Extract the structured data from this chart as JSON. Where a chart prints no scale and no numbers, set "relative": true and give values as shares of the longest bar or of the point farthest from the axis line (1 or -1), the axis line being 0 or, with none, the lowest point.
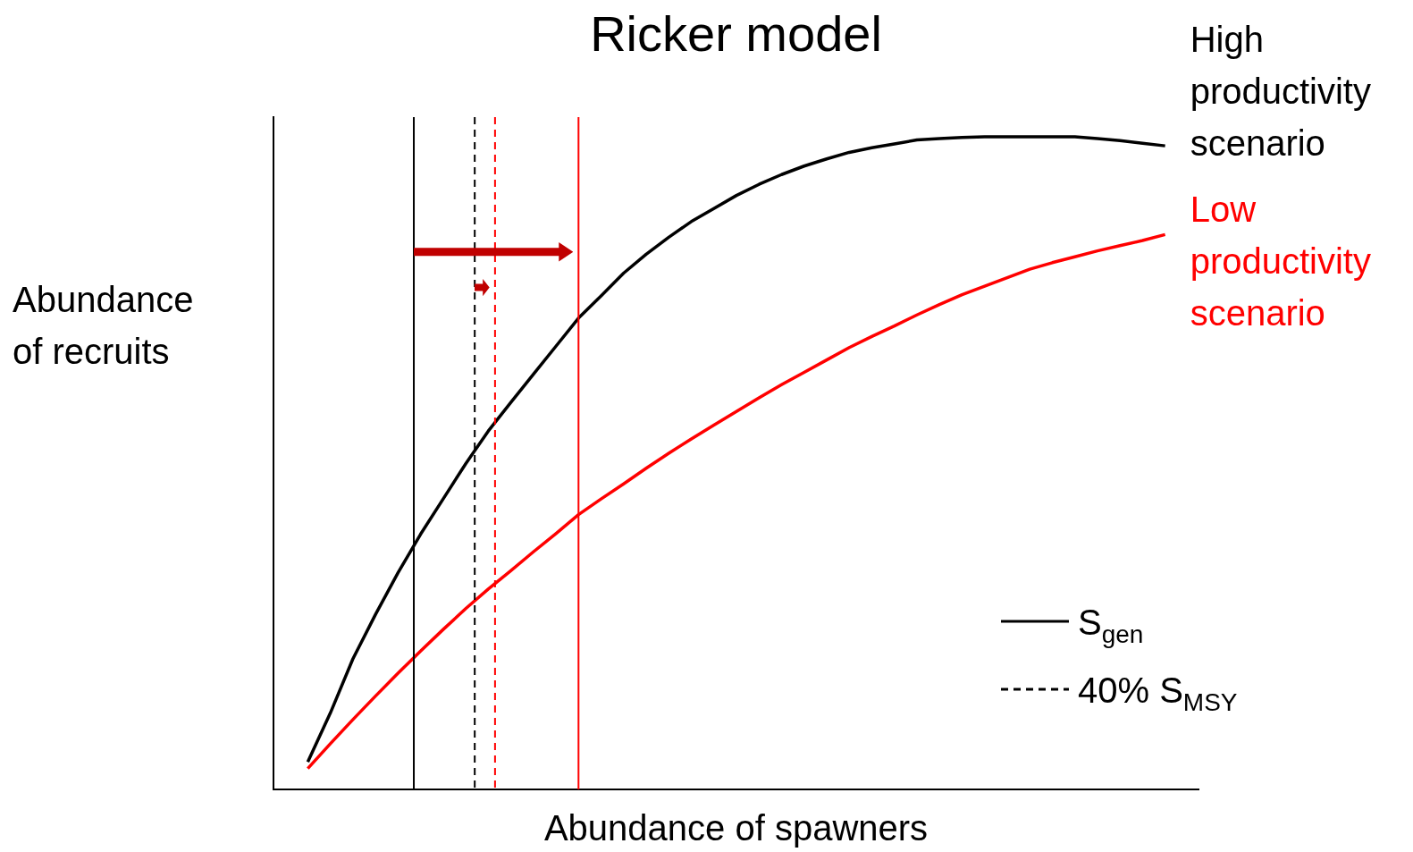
{
  "chart_data": {
    "type": "line",
    "title": "Ricker model",
    "xlabel": "Abundance of spawners",
    "ylabel": "Abundance of recruits",
    "relative": true,
    "marker": "none",
    "annotations": [
      "S$_{gen}$",
      "40% S$_{MSY}$"
    ],
    "categories": [
      null,
      null,
      null,
      null,
      null,
      null,
      null,
      null,
      null,
      null,
      null,
      null,
      null,
      null,
      null,
      null,
      null,
      null,
      null,
      null,
      null,
      null,
      null,
      null,
      null,
      null,
      null,
      null,
      null,
      null,
      null,
      null,
      null,
      null,
      null,
      null,
      null,
      null,
      null
    ],
    "series": [
      {
        "name": "High productivity scenario",
        "color": "#000000",
        "values": [
          0.042,
          0.117,
          0.2,
          0.268,
          0.332,
          0.391,
          0.445,
          0.499,
          0.549,
          0.593,
          0.636,
          0.679,
          0.722,
          0.756,
          0.791,
          0.82,
          0.846,
          0.87,
          0.89,
          0.91,
          0.927,
          0.942,
          0.955,
          0.966,
          0.976,
          0.983,
          0.989,
          0.995,
          0.997,
          0.999,
          1,
          1,
          1,
          1,
          1,
          0.997,
          0.994,
          0.99,
          0.986
        ]
      },
      {
        "name": "Low productivity scenario",
        "color": "#ff0000",
        "values": [
          0.032,
          0.07,
          0.107,
          0.143,
          0.178,
          0.212,
          0.245,
          0.277,
          0.307,
          0.335,
          0.364,
          0.392,
          0.421,
          0.445,
          0.468,
          0.492,
          0.515,
          0.537,
          0.558,
          0.579,
          0.6,
          0.62,
          0.639,
          0.658,
          0.677,
          0.694,
          0.71,
          0.727,
          0.743,
          0.758,
          0.771,
          0.784,
          0.797,
          0.807,
          0.816,
          0.825,
          0.833,
          0.841,
          0.85
        ]
      }
    ]
  }
}
